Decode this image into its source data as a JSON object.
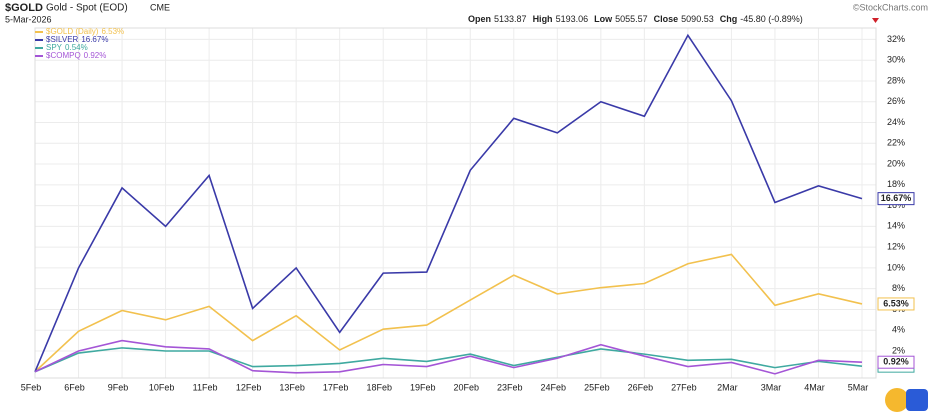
{
  "chart_data": {
    "type": "line",
    "symbol": "$GOLD",
    "title": "Gold - Spot (EOD)",
    "exchange": "CME",
    "date": "5-Mar-2026",
    "quote": [
      {
        "label": "Open",
        "value": "5133.87"
      },
      {
        "label": "High",
        "value": "5193.06"
      },
      {
        "label": "Low",
        "value": "5055.57"
      },
      {
        "label": "Close",
        "value": "5090.53"
      },
      {
        "label": "Chg",
        "value": "-45.80 (-0.89%)"
      }
    ],
    "watermark": "©StockCharts.com",
    "categories": [
      "5Feb",
      "6Feb",
      "9Feb",
      "10Feb",
      "11Feb",
      "12Feb",
      "13Feb",
      "17Feb",
      "18Feb",
      "19Feb",
      "20Feb",
      "23Feb",
      "24Feb",
      "25Feb",
      "26Feb",
      "27Feb",
      "2Mar",
      "3Mar",
      "4Mar",
      "5Mar"
    ],
    "series": [
      {
        "name": "$GOLD (Daily)",
        "end_label": "6.53%",
        "color": "#f2c14e",
        "values": [
          0,
          3.9,
          5.9,
          5.0,
          6.3,
          3.0,
          5.4,
          2.1,
          4.1,
          4.5,
          6.9,
          9.3,
          7.5,
          8.1,
          8.5,
          10.4,
          11.3,
          6.4,
          7.5,
          6.53
        ]
      },
      {
        "name": "$SILVER",
        "end_label": "16.67%",
        "color": "#3a3aa8",
        "values": [
          0,
          10.0,
          17.7,
          14.0,
          18.9,
          6.1,
          10.0,
          3.8,
          9.5,
          9.6,
          19.4,
          24.4,
          23.0,
          26.0,
          24.6,
          32.4,
          26.1,
          16.3,
          17.9,
          16.67
        ]
      },
      {
        "name": "SPY",
        "end_label": "0.54%",
        "color": "#3fa9a0",
        "values": [
          0,
          1.8,
          2.3,
          2.0,
          2.0,
          0.5,
          0.6,
          0.8,
          1.3,
          1.0,
          1.7,
          0.6,
          1.4,
          2.2,
          1.7,
          1.1,
          1.2,
          0.4,
          1.0,
          0.54
        ]
      },
      {
        "name": "$COMPQ",
        "end_label": "0.92%",
        "color": "#a455d6",
        "values": [
          0,
          2.0,
          3.0,
          2.4,
          2.2,
          0.1,
          -0.1,
          0.0,
          0.7,
          0.5,
          1.5,
          0.4,
          1.3,
          2.6,
          1.5,
          0.5,
          0.9,
          -0.2,
          1.1,
          0.92
        ]
      }
    ],
    "ylim": [
      -0.6,
      33.1
    ],
    "yticks": [
      {
        "value": 2,
        "label": "2%"
      },
      {
        "value": 4,
        "label": "4%"
      },
      {
        "value": 6,
        "label": "6%"
      },
      {
        "value": 8,
        "label": "8%"
      },
      {
        "value": 10,
        "label": "10%"
      },
      {
        "value": 12,
        "label": "12%"
      },
      {
        "value": 14,
        "label": "14%"
      },
      {
        "value": 16,
        "label": "16%"
      },
      {
        "value": 18,
        "label": "18%"
      },
      {
        "value": 20,
        "label": "20%"
      },
      {
        "value": 22,
        "label": "22%"
      },
      {
        "value": 24,
        "label": "24%"
      },
      {
        "value": 26,
        "label": "26%"
      },
      {
        "value": 28,
        "label": "28%"
      },
      {
        "value": 30,
        "label": "30%"
      },
      {
        "value": 32,
        "label": "32%"
      }
    ],
    "grid": true
  }
}
